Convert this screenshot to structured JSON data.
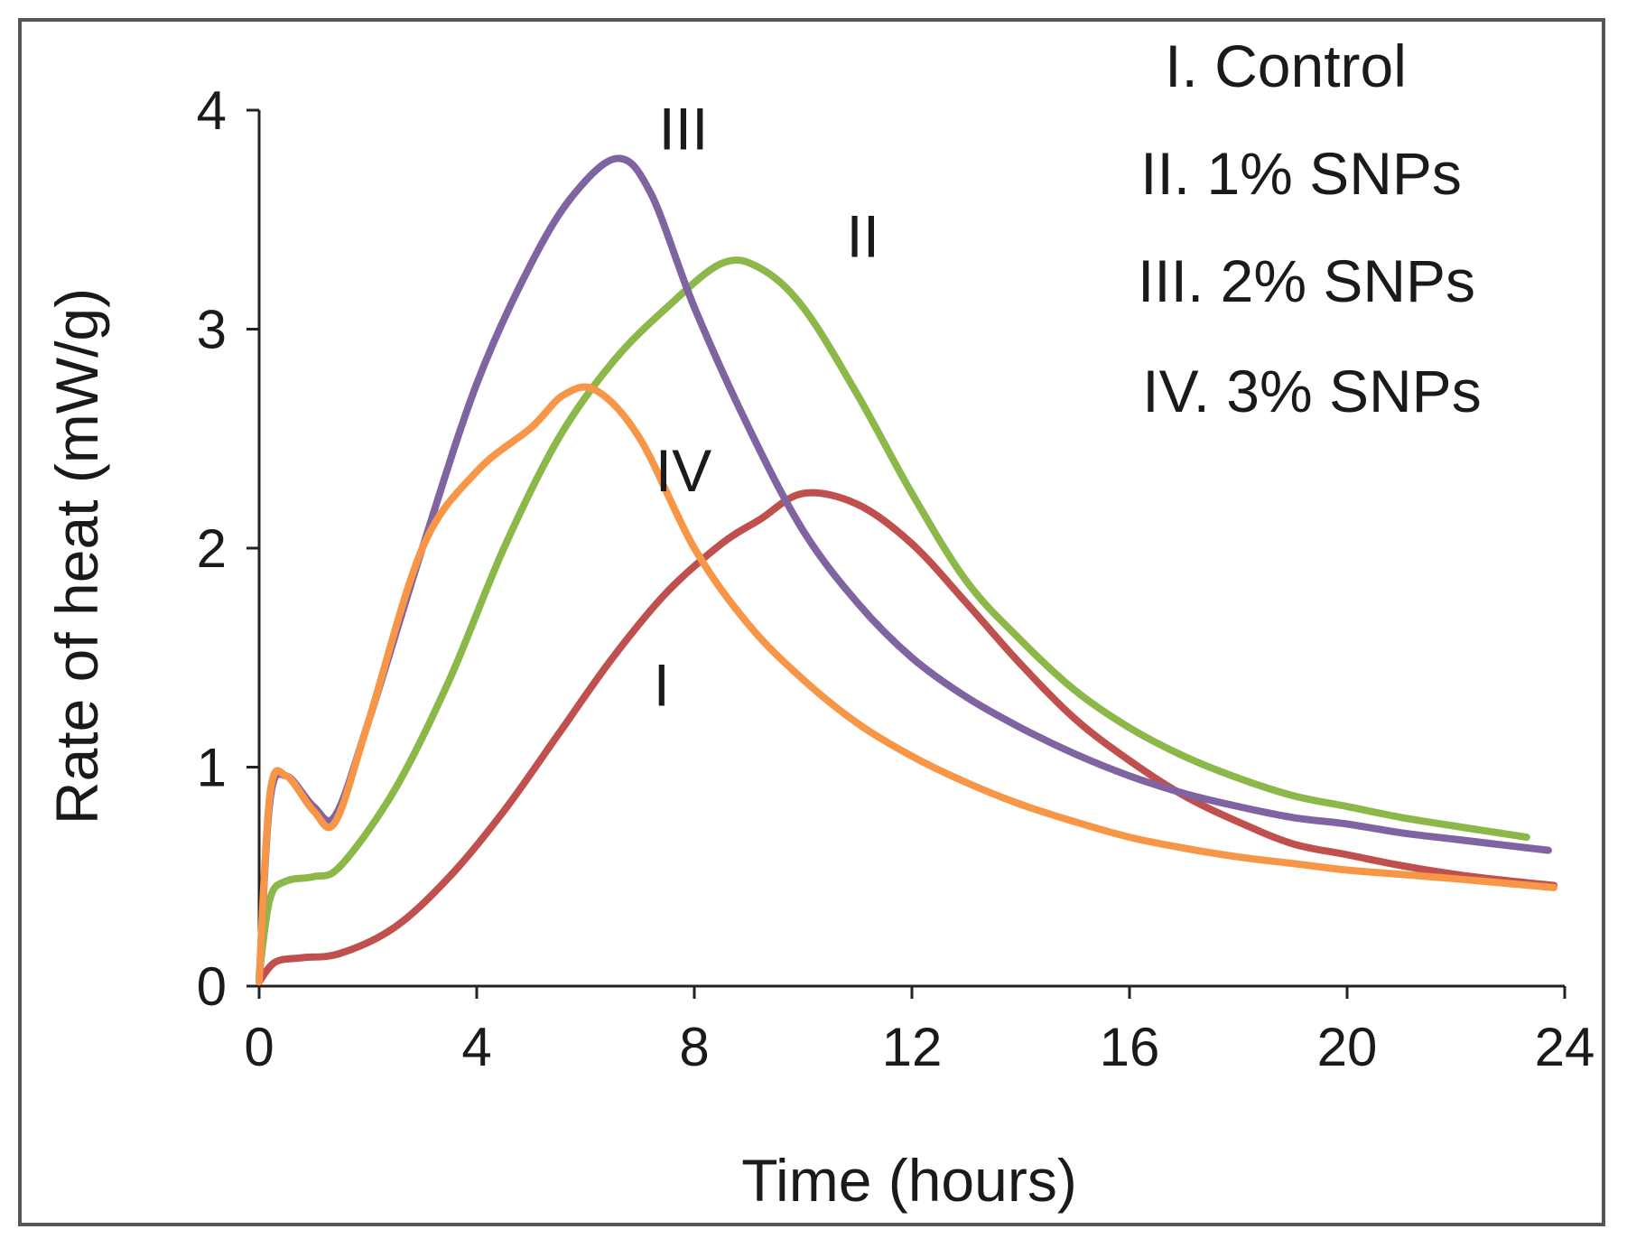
{
  "chart_data": {
    "type": "line",
    "title": "",
    "xlabel": "Time (hours)",
    "ylabel": "Rate of heat (mW/g)",
    "xlim": [
      0,
      24
    ],
    "ylim": [
      0,
      4
    ],
    "xticks": [
      "0",
      "4",
      "8",
      "12",
      "16",
      "20",
      "24"
    ],
    "yticks": [
      "0",
      "1",
      "2",
      "3",
      "4"
    ],
    "grid": false,
    "legend_position": "top-right",
    "legend": [
      "I. Control",
      "II. 1% SNPs",
      "III. 2% SNPs",
      "IV. 3% SNPs"
    ],
    "series": [
      {
        "name": "I",
        "color": "#c0504d",
        "label_at": [
          7.4,
          1.28
        ],
        "x": [
          0,
          0.3,
          0.8,
          1.5,
          2.5,
          3.5,
          4.5,
          5.5,
          6.5,
          7.5,
          8.5,
          9.2,
          10,
          11,
          12,
          13,
          14,
          15,
          16,
          17,
          18,
          19,
          20,
          21,
          22,
          23,
          23.8
        ],
        "y": [
          0.02,
          0.11,
          0.13,
          0.15,
          0.27,
          0.5,
          0.8,
          1.15,
          1.5,
          1.8,
          2.02,
          2.13,
          2.25,
          2.2,
          2.02,
          1.75,
          1.47,
          1.22,
          1.03,
          0.87,
          0.75,
          0.65,
          0.6,
          0.55,
          0.51,
          0.48,
          0.46
        ]
      },
      {
        "name": "II",
        "color": "#8cb84a",
        "label_at": [
          11.1,
          3.33
        ],
        "x": [
          0,
          0.2,
          0.5,
          1.0,
          1.5,
          2.5,
          3.5,
          4.5,
          5.5,
          6.5,
          7.5,
          8.5,
          9.2,
          10,
          11,
          12,
          13,
          14,
          15,
          16,
          17,
          18,
          19,
          20,
          21,
          22,
          23.3
        ],
        "y": [
          0.05,
          0.4,
          0.48,
          0.5,
          0.55,
          0.9,
          1.4,
          2.0,
          2.5,
          2.85,
          3.1,
          3.3,
          3.28,
          3.1,
          2.7,
          2.25,
          1.85,
          1.58,
          1.35,
          1.18,
          1.05,
          0.95,
          0.87,
          0.82,
          0.77,
          0.73,
          0.68
        ]
      },
      {
        "name": "III",
        "color": "#8064a2",
        "label_at": [
          7.8,
          3.82
        ],
        "x": [
          0,
          0.2,
          0.5,
          1.0,
          1.4,
          2.0,
          3.0,
          4.0,
          5.0,
          5.8,
          6.6,
          7.2,
          8.0,
          9.0,
          10.0,
          11.0,
          12.0,
          13.0,
          14.0,
          15.0,
          16.0,
          17.0,
          18.0,
          19.0,
          20.0,
          21.0,
          22.0,
          23.7
        ],
        "y": [
          0.02,
          0.85,
          0.96,
          0.82,
          0.78,
          1.2,
          2.0,
          2.75,
          3.3,
          3.62,
          3.78,
          3.62,
          3.1,
          2.55,
          2.08,
          1.75,
          1.5,
          1.32,
          1.18,
          1.06,
          0.96,
          0.88,
          0.82,
          0.77,
          0.74,
          0.7,
          0.67,
          0.62
        ]
      },
      {
        "name": "IV",
        "color": "#f79646",
        "label_at": [
          7.8,
          2.26
        ],
        "x": [
          0,
          0.2,
          0.5,
          1.0,
          1.4,
          2.0,
          3.0,
          4.0,
          5.0,
          5.6,
          6.2,
          7.0,
          8.0,
          9.0,
          10.0,
          11.0,
          12.0,
          13.0,
          14.0,
          15.0,
          16.0,
          17.0,
          18.0,
          19.0,
          20.0,
          21.0,
          22.0,
          23.8
        ],
        "y": [
          0.02,
          0.88,
          0.96,
          0.8,
          0.75,
          1.2,
          2.0,
          2.35,
          2.55,
          2.7,
          2.72,
          2.5,
          2.0,
          1.65,
          1.4,
          1.2,
          1.05,
          0.93,
          0.83,
          0.75,
          0.68,
          0.63,
          0.59,
          0.56,
          0.53,
          0.51,
          0.49,
          0.45
        ]
      }
    ]
  }
}
